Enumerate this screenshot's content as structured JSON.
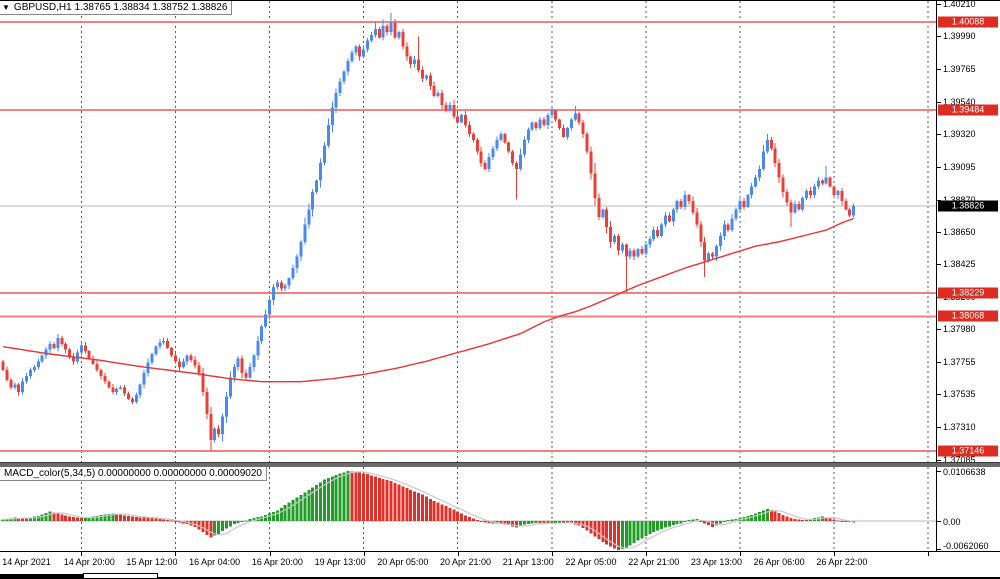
{
  "header": {
    "toggle_icon": "▼",
    "symbol": "GBPUSD,H1",
    "ohlc": "1.38765 1.38834 1.38752 1.38826"
  },
  "macd": {
    "label": "MACD_color(5,34,5)",
    "values": "0.00000000 0.00000000 0.00009020",
    "axis": [
      "0.0106638",
      "0.00",
      "-0.0062060"
    ]
  },
  "colors": {
    "up": "#4a8af0",
    "down": "#ea4038",
    "level_line": "#f28080",
    "level_tag_bg": "#dd2c22",
    "current_tag_bg": "#000000",
    "ma": "#e93535",
    "macd_up": "#1f9d27",
    "macd_down": "#e0302a",
    "signal": "#c8c8c8",
    "grid": "#5a5a5a",
    "current_line": "#b8b8b8"
  },
  "chart_data": [
    {
      "type": "candlestick",
      "symbol": "GBPUSD",
      "timeframe": "H1",
      "ohlc_display": {
        "open": "1.38765",
        "high": "1.38834",
        "low": "1.38752",
        "close": "1.38826"
      },
      "y_axis": {
        "min": 1.37069,
        "max": 1.40232,
        "labels": [
          "1.40210",
          "1.39990",
          "1.39765",
          "1.39540",
          "1.39320",
          "1.39095",
          "1.38870",
          "1.38650",
          "1.38425",
          "1.38200",
          "1.37980",
          "1.37755",
          "1.37535",
          "1.37310",
          "1.37085"
        ]
      },
      "x_axis": {
        "labels": [
          [
            6,
            "14 Apr 2021"
          ],
          [
            22,
            "14 Apr 20:00"
          ],
          [
            38,
            "15 Apr 12:00"
          ],
          [
            54,
            "16 Apr 04:00"
          ],
          [
            70,
            "16 Apr 20:00"
          ],
          [
            86,
            "19 Apr 13:00"
          ],
          [
            102,
            "20 Apr 05:00"
          ],
          [
            118,
            "20 Apr 21:00"
          ],
          [
            134,
            "21 Apr 13:00"
          ],
          [
            150,
            "22 Apr 05:00"
          ],
          [
            166,
            "22 Apr 21:00"
          ],
          [
            182,
            "23 Apr 13:00"
          ],
          [
            198,
            "26 Apr 06:00"
          ],
          [
            214,
            "26 Apr 22:00"
          ]
        ],
        "day_grid_start_bar": 20,
        "day_grid_step": 24,
        "day_grid_count": 10
      },
      "levels": [
        {
          "price": 1.40088,
          "label": "1.40088"
        },
        {
          "price": 1.39484,
          "label": "1.39484"
        },
        {
          "price": 1.38229,
          "label": "1.38229"
        },
        {
          "price": 1.38068,
          "label": "1.38068"
        },
        {
          "price": 1.37146,
          "label": "1.37146"
        }
      ],
      "current_price": {
        "price": 1.38826,
        "label": "1.38826"
      },
      "first_open": 1.3776,
      "closes": [
        1.377,
        1.3763,
        1.3758,
        1.376,
        1.3755,
        1.3762,
        1.3766,
        1.377,
        1.3772,
        1.3776,
        1.378,
        1.3784,
        1.3788,
        1.3785,
        1.3792,
        1.3788,
        1.3784,
        1.3779,
        1.3776,
        1.3782,
        1.3787,
        1.3783,
        1.3778,
        1.3774,
        1.377,
        1.3766,
        1.3762,
        1.3758,
        1.3755,
        1.3757,
        1.3758,
        1.3754,
        1.375,
        1.3748,
        1.3753,
        1.376,
        1.3768,
        1.3775,
        1.3781,
        1.3786,
        1.3789,
        1.379,
        1.3785,
        1.378,
        1.3776,
        1.3772,
        1.3776,
        1.378,
        1.3777,
        1.3773,
        1.3768,
        1.3755,
        1.374,
        1.3722,
        1.373,
        1.3726,
        1.3738,
        1.3752,
        1.3765,
        1.3772,
        1.3778,
        1.3768,
        1.3765,
        1.3772,
        1.378,
        1.379,
        1.38,
        1.3808,
        1.3818,
        1.3827,
        1.383,
        1.3826,
        1.3828,
        1.3833,
        1.384,
        1.3848,
        1.3858,
        1.387,
        1.388,
        1.3892,
        1.39,
        1.3912,
        1.3924,
        1.3938,
        1.395,
        1.396,
        1.3968,
        1.3975,
        1.3982,
        1.3988,
        1.3992,
        1.3985,
        1.399,
        1.3996,
        1.4,
        1.4004,
        1.3998,
        1.4006,
        1.4002,
        1.4008,
        1.3998,
        1.4002,
        1.3992,
        1.3985,
        1.398,
        1.3983,
        1.3976,
        1.397,
        1.3972,
        1.3965,
        1.3958,
        1.396,
        1.3952,
        1.3948,
        1.3952,
        1.3944,
        1.394,
        1.3945,
        1.3938,
        1.3932,
        1.3928,
        1.392,
        1.3912,
        1.3908,
        1.3916,
        1.3922,
        1.3928,
        1.3932,
        1.3926,
        1.392,
        1.3912,
        1.3908,
        1.3918,
        1.3928,
        1.3935,
        1.394,
        1.3936,
        1.3942,
        1.3938,
        1.3945,
        1.3948,
        1.3942,
        1.3936,
        1.393,
        1.3936,
        1.3942,
        1.3946,
        1.394,
        1.3932,
        1.392,
        1.3905,
        1.3888,
        1.3875,
        1.388,
        1.3868,
        1.3858,
        1.3862,
        1.3852,
        1.3856,
        1.3848,
        1.3852,
        1.3848,
        1.3853,
        1.385,
        1.3856,
        1.386,
        1.3866,
        1.3862,
        1.387,
        1.3876,
        1.3872,
        1.388,
        1.3886,
        1.3882,
        1.389,
        1.3886,
        1.3878,
        1.387,
        1.3858,
        1.3845,
        1.385,
        1.3848,
        1.3855,
        1.3862,
        1.387,
        1.3866,
        1.3874,
        1.388,
        1.3886,
        1.3882,
        1.389,
        1.3896,
        1.3902,
        1.3908,
        1.392,
        1.3928,
        1.3922,
        1.3912,
        1.3902,
        1.3892,
        1.3885,
        1.3878,
        1.3884,
        1.388,
        1.3888,
        1.3893,
        1.389,
        1.3896,
        1.39,
        1.3898,
        1.3902,
        1.3896,
        1.389,
        1.3893,
        1.3886,
        1.388,
        1.3876,
        1.38826
      ],
      "extremes": {
        "53": {
          "low": 1.37146
        },
        "95": {
          "high": 1.4009
        },
        "97": {
          "high": 1.40105
        },
        "99": {
          "high": 1.40148
        },
        "106": {
          "high": 1.3999
        },
        "131": {
          "low": 1.3887
        },
        "140": {
          "high": 1.395
        },
        "146": {
          "high": 1.3951
        },
        "159": {
          "low": 1.38235
        },
        "179": {
          "low": 1.3834
        },
        "195": {
          "high": 1.3932
        },
        "201": {
          "low": 1.3868
        },
        "210": {
          "high": 1.391
        }
      },
      "ma_line": {
        "description": "long-period moving average overlay",
        "points": [
          [
            0,
            1.3786
          ],
          [
            12,
            1.3781
          ],
          [
            24,
            1.3777
          ],
          [
            36,
            1.3772
          ],
          [
            48,
            1.3768
          ],
          [
            58,
            1.3764
          ],
          [
            66,
            1.3762
          ],
          [
            76,
            1.3762
          ],
          [
            84,
            1.3764
          ],
          [
            92,
            1.3767
          ],
          [
            100,
            1.3771
          ],
          [
            108,
            1.3776
          ],
          [
            116,
            1.3782
          ],
          [
            124,
            1.3788
          ],
          [
            132,
            1.3795
          ],
          [
            138,
            1.3803
          ],
          [
            142,
            1.3807
          ],
          [
            146,
            1.381
          ],
          [
            150,
            1.3814
          ],
          [
            156,
            1.3821
          ],
          [
            162,
            1.3828
          ],
          [
            168,
            1.3834
          ],
          [
            174,
            1.384
          ],
          [
            180,
            1.3845
          ],
          [
            186,
            1.385
          ],
          [
            192,
            1.3855
          ],
          [
            198,
            1.3858
          ],
          [
            204,
            1.3862
          ],
          [
            210,
            1.3866
          ],
          [
            214,
            1.3871
          ],
          [
            217,
            1.3874
          ]
        ]
      }
    },
    {
      "type": "bar",
      "subtype": "macd_histogram",
      "title": "MACD_color(5,34,5)",
      "ylim": [
        -0.006206,
        0.0106638
      ],
      "zero_label": "0.00",
      "anchors": [
        [
          0,
          0.0003
        ],
        [
          3,
          0.0007
        ],
        [
          6,
          0.0005
        ],
        [
          9,
          0.0011
        ],
        [
          12,
          0.002
        ],
        [
          14,
          0.0016
        ],
        [
          17,
          0.0009
        ],
        [
          20,
          0.0006
        ],
        [
          23,
          0.0009
        ],
        [
          26,
          0.0014
        ],
        [
          28,
          0.0016
        ],
        [
          31,
          0.0012
        ],
        [
          34,
          0.0008
        ],
        [
          37,
          0.0007
        ],
        [
          40,
          0.0004
        ],
        [
          43,
          0.0001
        ],
        [
          45,
          -0.0003
        ],
        [
          47,
          -0.0007
        ],
        [
          49,
          -0.0013
        ],
        [
          51,
          -0.0024
        ],
        [
          53,
          -0.0035
        ],
        [
          55,
          -0.0028
        ],
        [
          57,
          -0.0016
        ],
        [
          59,
          -0.0007
        ],
        [
          61,
          -0.0002
        ],
        [
          63,
          0.0004
        ],
        [
          66,
          0.001
        ],
        [
          70,
          0.0022
        ],
        [
          74,
          0.0045
        ],
        [
          78,
          0.0066
        ],
        [
          82,
          0.0088
        ],
        [
          85,
          0.0098
        ],
        [
          88,
          0.0106638
        ],
        [
          90,
          0.0105
        ],
        [
          93,
          0.01
        ],
        [
          96,
          0.0092
        ],
        [
          99,
          0.0085
        ],
        [
          103,
          0.007
        ],
        [
          107,
          0.0056
        ],
        [
          110,
          0.0043
        ],
        [
          114,
          0.0028
        ],
        [
          117,
          0.0016
        ],
        [
          119,
          0.0008
        ],
        [
          121,
          0.0002
        ],
        [
          123,
          -0.0003
        ],
        [
          126,
          -0.0006
        ],
        [
          129,
          -0.0009
        ],
        [
          131,
          -0.0014
        ],
        [
          133,
          -0.0008
        ],
        [
          136,
          -0.0004
        ],
        [
          139,
          -0.0006
        ],
        [
          142,
          -0.0003
        ],
        [
          145,
          -0.0005
        ],
        [
          147,
          -0.001
        ],
        [
          149,
          -0.002
        ],
        [
          151,
          -0.0033
        ],
        [
          153,
          -0.0045
        ],
        [
          155,
          -0.0055
        ],
        [
          157,
          -0.006206
        ],
        [
          159,
          -0.0057
        ],
        [
          161,
          -0.0047
        ],
        [
          163,
          -0.0037
        ],
        [
          165,
          -0.0028
        ],
        [
          167,
          -0.002
        ],
        [
          169,
          -0.0014
        ],
        [
          171,
          -0.0009
        ],
        [
          173,
          -0.0005
        ],
        [
          175,
          0.0002
        ],
        [
          177,
          0.0004
        ],
        [
          178,
          -0.0001
        ],
        [
          180,
          -0.0009
        ],
        [
          181,
          -0.0013
        ],
        [
          183,
          -0.0006
        ],
        [
          185,
          0.0002
        ],
        [
          187,
          0.0004
        ],
        [
          189,
          0.0008
        ],
        [
          191,
          0.0013
        ],
        [
          193,
          0.0019
        ],
        [
          195,
          0.0026
        ],
        [
          197,
          0.002
        ],
        [
          199,
          0.0013
        ],
        [
          201,
          0.0006
        ],
        [
          203,
          0.0003
        ],
        [
          205,
          0.0002
        ],
        [
          207,
          0.0006
        ],
        [
          209,
          0.0009
        ],
        [
          211,
          0.0005
        ],
        [
          213,
          0.0001
        ],
        [
          215,
          -0.0002
        ],
        [
          217,
          -0.0003
        ]
      ]
    }
  ]
}
